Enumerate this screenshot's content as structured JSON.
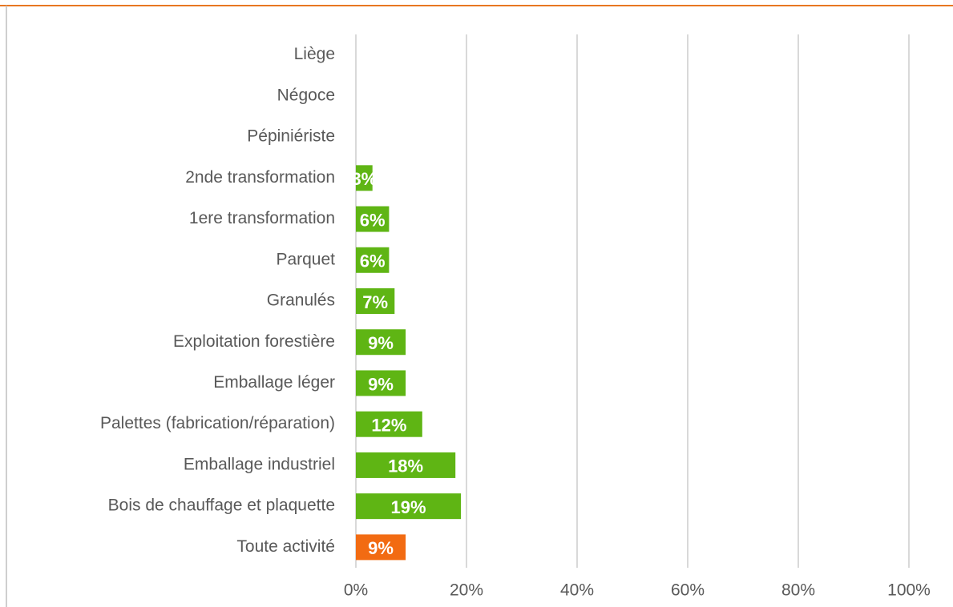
{
  "chart_data": {
    "type": "barh",
    "categories": [
      "Liège",
      "Négoce",
      "Pépiniériste",
      "2nde transformation",
      "1ere transformation",
      "Parquet",
      "Granulés",
      "Exploitation forestière",
      "Emballage léger",
      "Palettes (fabrication/réparation)",
      "Emballage industriel",
      "Bois de chauffage et plaquette",
      "Toute activité"
    ],
    "values": [
      0,
      0,
      0,
      3,
      6,
      6,
      7,
      9,
      9,
      12,
      18,
      19,
      9
    ],
    "value_labels": [
      null,
      null,
      null,
      "3%",
      "6%",
      "6%",
      "7%",
      "9%",
      "9%",
      "12%",
      "18%",
      "19%",
      "9%"
    ],
    "colors": [
      "#5fb514",
      "#5fb514",
      "#5fb514",
      "#5fb514",
      "#5fb514",
      "#5fb514",
      "#5fb514",
      "#5fb514",
      "#5fb514",
      "#5fb514",
      "#5fb514",
      "#5fb514",
      "#f26b12"
    ],
    "xlim": [
      0,
      100
    ],
    "xticks": [
      {
        "value": 0,
        "label": "0%"
      },
      {
        "value": 20,
        "label": "20%"
      },
      {
        "value": 40,
        "label": "40%"
      },
      {
        "value": 60,
        "label": "60%"
      },
      {
        "value": 80,
        "label": "80%"
      },
      {
        "value": 100,
        "label": "100%"
      }
    ],
    "grid": true
  }
}
